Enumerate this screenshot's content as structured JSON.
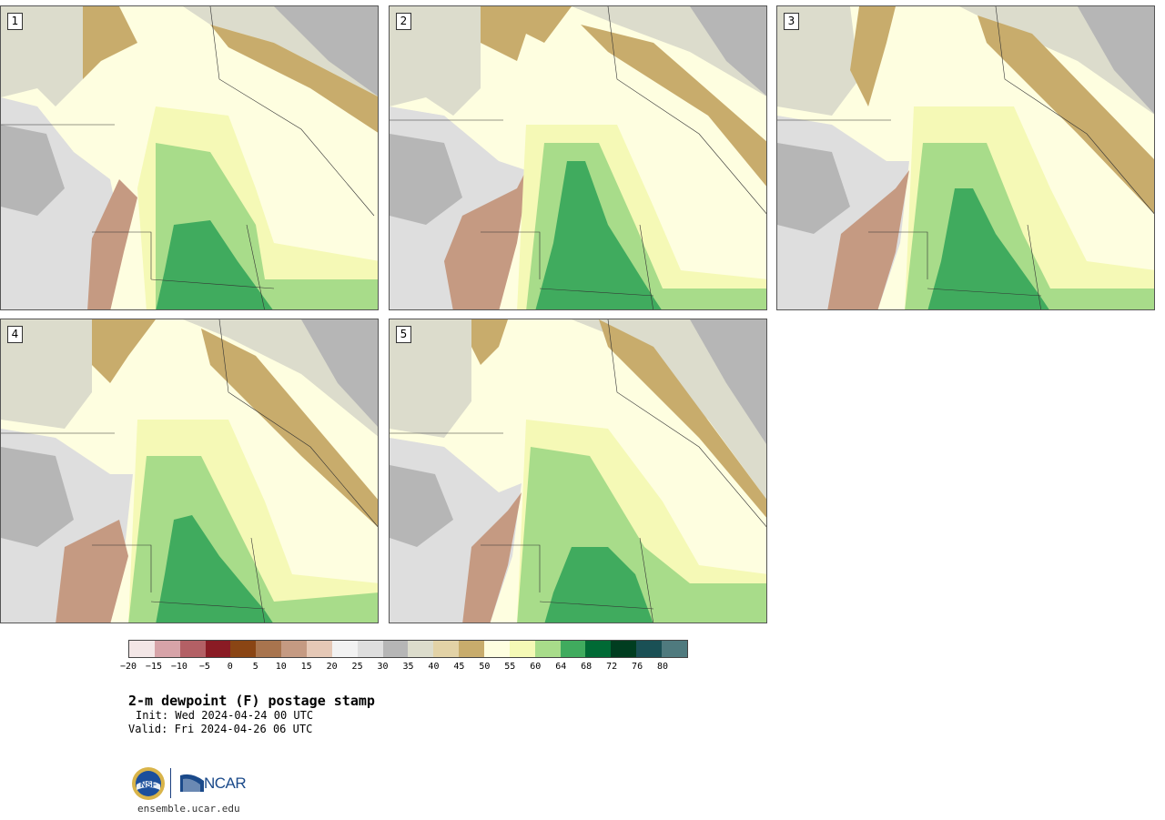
{
  "panels": [
    {
      "label": "1"
    },
    {
      "label": "2"
    },
    {
      "label": "3"
    },
    {
      "label": "4"
    },
    {
      "label": "5"
    }
  ],
  "colorbar": {
    "colors": [
      "#f3e6e6",
      "#d7a3a8",
      "#b36065",
      "#8a1b24",
      "#8a4514",
      "#a8744e",
      "#c59a82",
      "#e5c8b6",
      "#f2f2f2",
      "#dedede",
      "#b6b6b6",
      "#dcdccc",
      "#e2d2a6",
      "#c8ac6c",
      "#fefee0",
      "#f5f9b6",
      "#a8dc8a",
      "#40ab5e",
      "#006a35",
      "#003d20",
      "#1a5055",
      "#4f7a7e"
    ],
    "ticks": [
      "−20",
      "−15",
      "−10",
      "−5",
      "0",
      "5",
      "10",
      "15",
      "20",
      "25",
      "30",
      "35",
      "40",
      "45",
      "50",
      "55",
      "60",
      "64",
      "68",
      "72",
      "76",
      "80"
    ]
  },
  "title": "2-m dewpoint (F) postage stamp",
  "init": "Init: Wed 2024-04-24 00 UTC",
  "valid": "Valid: Fri 2024-04-26 06 UTC",
  "logos": {
    "nsf": "NSF",
    "ncar": "NCAR"
  },
  "site": "ensemble.ucar.edu"
}
